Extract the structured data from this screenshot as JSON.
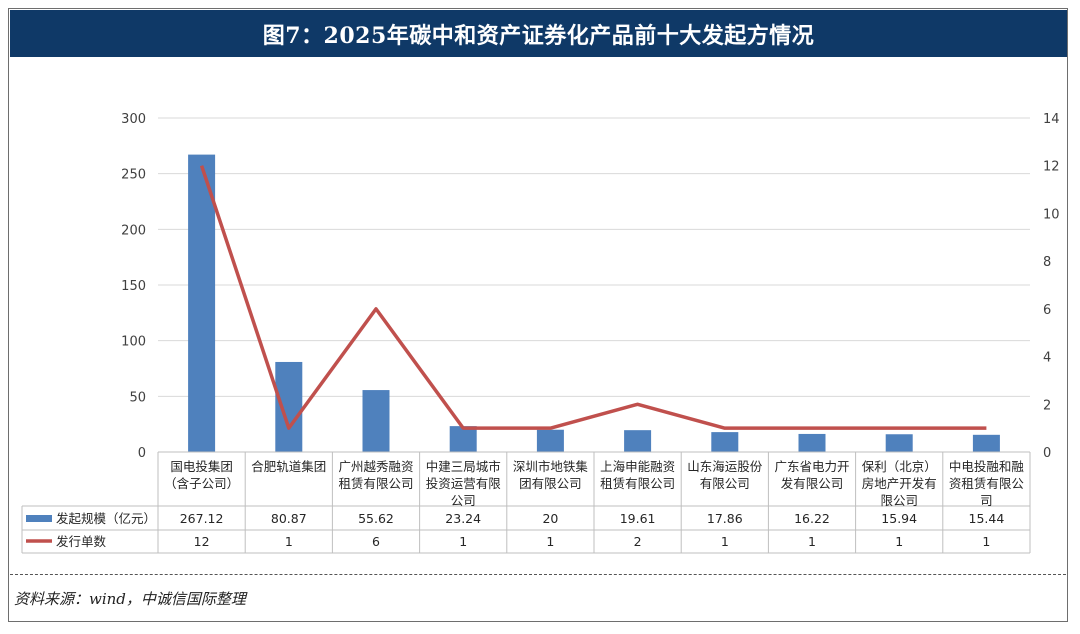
{
  "title": "图7：2025年碳中和资产证券化产品前十大发起方情况",
  "source": "资料来源：wind，中诚信国际整理",
  "colors": {
    "bar": "#4f81bd",
    "line": "#c0504d",
    "header": "#0f3967"
  },
  "chart_data": {
    "type": "bar",
    "categories": [
      [
        "国电投集团",
        "（含子公司）"
      ],
      [
        "合肥轨道集团"
      ],
      [
        "广州越秀融资",
        "租赁有限公司"
      ],
      [
        "中建三局城市",
        "投资运营有限",
        "公司"
      ],
      [
        "深圳市地铁集",
        "团有限公司"
      ],
      [
        "上海申能融资",
        "租赁有限公司"
      ],
      [
        "山东海运股份",
        "有限公司"
      ],
      [
        "广东省电力开",
        "发有限公司"
      ],
      [
        "保利（北京）",
        "房地产开发有",
        "限公司"
      ],
      [
        "中电投融和融",
        "资租赁有限公",
        "司"
      ]
    ],
    "series": [
      {
        "name": "发起规模（亿元）",
        "type": "bar",
        "axis": "left",
        "values": [
          267.12,
          80.87,
          55.62,
          23.24,
          20,
          19.61,
          17.86,
          16.22,
          15.94,
          15.44
        ],
        "labels": [
          "267.12",
          "80.87",
          "55.62",
          "23.24",
          "20",
          "19.61",
          "17.86",
          "16.22",
          "15.94",
          "15.44"
        ]
      },
      {
        "name": "发行单数",
        "type": "line",
        "axis": "right",
        "values": [
          12,
          1,
          6,
          1,
          1,
          2,
          1,
          1,
          1,
          1
        ],
        "labels": [
          "12",
          "1",
          "6",
          "1",
          "1",
          "2",
          "1",
          "1",
          "1",
          "1"
        ]
      }
    ],
    "yleft": {
      "ylim": [
        0,
        300
      ],
      "ticks": [
        "0",
        "50",
        "100",
        "150",
        "200",
        "250",
        "300"
      ]
    },
    "yright": {
      "ylim": [
        0,
        14
      ],
      "ticks": [
        "0",
        "2",
        "4",
        "6",
        "8",
        "10",
        "12",
        "14"
      ]
    },
    "grid": true,
    "legend": "data-table"
  }
}
